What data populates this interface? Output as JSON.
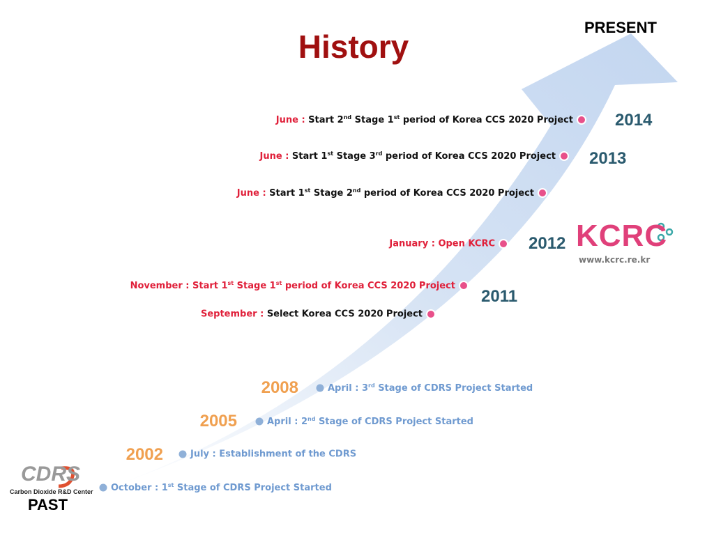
{
  "title": "History",
  "present": "PRESENT",
  "past": "PAST",
  "years": [
    "2014",
    "2013",
    "2012",
    "2011",
    "2008",
    "2005",
    "2002"
  ],
  "events": [
    {
      "month": "June :",
      "parts": [
        "Start 2",
        {
          "sup": "nd"
        },
        " Stage 1",
        {
          "sup": "st"
        },
        " period of Korea CCS 2020 Project"
      ]
    },
    {
      "month": "June :",
      "parts": [
        "Start 1",
        {
          "sup": "st"
        },
        " Stage 3",
        {
          "sup": "rd"
        },
        " period of Korea CCS 2020 Project"
      ]
    },
    {
      "month": "June :",
      "parts": [
        "Start 1",
        {
          "sup": "st"
        },
        " Stage 2",
        {
          "sup": "nd"
        },
        " period of Korea CCS 2020 Project"
      ]
    },
    {
      "month": "January :",
      "parts": [
        "Open KCRC"
      ]
    },
    {
      "month": "November :",
      "parts": [
        "Start 1",
        {
          "sup": "st"
        },
        " Stage 1",
        {
          "sup": "st"
        },
        " period of Korea CCS 2020 Project"
      ]
    },
    {
      "month": "September :",
      "parts": [
        "Select Korea CCS 2020 Project"
      ]
    },
    {
      "month": "April :",
      "parts": [
        "3",
        {
          "sup": "rd"
        },
        " Stage of CDRS Project Started"
      ]
    },
    {
      "month": "April :",
      "parts": [
        "2",
        {
          "sup": "nd"
        },
        " Stage of CDRS Project Started"
      ]
    },
    {
      "month": "July :",
      "parts": [
        "Establishment of the CDRS"
      ]
    },
    {
      "month": "October :",
      "parts": [
        "1",
        {
          "sup": "st"
        },
        " Stage of CDRS Project Started"
      ]
    }
  ],
  "logos": {
    "kcrc": {
      "name": "KCRC",
      "url": "www.kcrc.re.kr"
    },
    "cdrs": {
      "name": "CDRS",
      "caption": "Carbon Dioxide R&D Center"
    }
  }
}
